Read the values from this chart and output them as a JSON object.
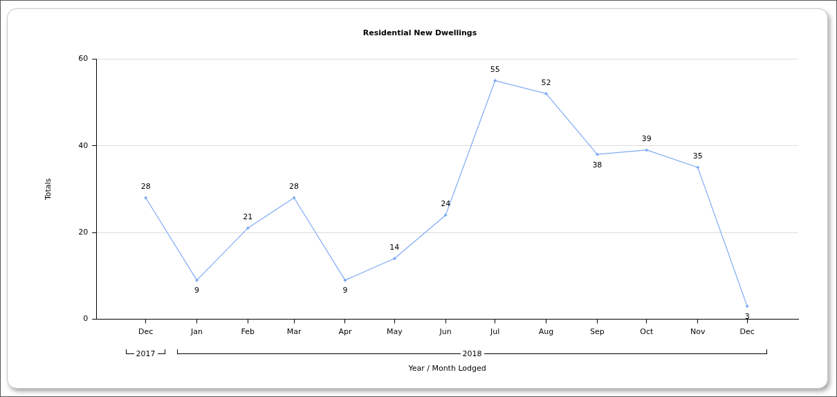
{
  "chart_data": {
    "type": "line",
    "title": "Residential New Dwellings",
    "xlabel": "Year / Month Lodged",
    "ylabel": "Totals",
    "x": [
      "2017-12",
      "2018-01",
      "2018-02",
      "2018-03",
      "2018-04",
      "2018-05",
      "2018-06",
      "2018-07",
      "2018-08",
      "2018-09",
      "2018-10",
      "2018-11",
      "2018-12"
    ],
    "xlim": [
      "2017-11",
      "2019-01"
    ],
    "xticks": [
      {
        "value": "2017-12",
        "label": "Dec"
      },
      {
        "value": "2018-01",
        "label": "Jan"
      },
      {
        "value": "2018-02",
        "label": "Feb"
      },
      {
        "value": "2018-03",
        "label": "Mar"
      },
      {
        "value": "2018-04",
        "label": "Apr"
      },
      {
        "value": "2018-05",
        "label": "May"
      },
      {
        "value": "2018-06",
        "label": "Jun"
      },
      {
        "value": "2018-07",
        "label": "Jul"
      },
      {
        "value": "2018-08",
        "label": "Aug"
      },
      {
        "value": "2018-09",
        "label": "Sep"
      },
      {
        "value": "2018-10",
        "label": "Oct"
      },
      {
        "value": "2018-11",
        "label": "Nov"
      },
      {
        "value": "2018-12",
        "label": "Dec"
      }
    ],
    "series": [
      {
        "color": "#7eaaf5",
        "values": [
          28,
          9,
          21,
          28,
          9,
          14,
          24,
          55,
          52,
          38,
          39,
          35,
          3
        ]
      }
    ],
    "annotations": [
      "2017",
      "2018"
    ],
    "ylim": [
      0,
      60
    ],
    "yticks": [
      0,
      20,
      40,
      60
    ],
    "grid": "y",
    "legend": false,
    "marker": "diamond",
    "line_style": "solid",
    "data_labels": true
  }
}
